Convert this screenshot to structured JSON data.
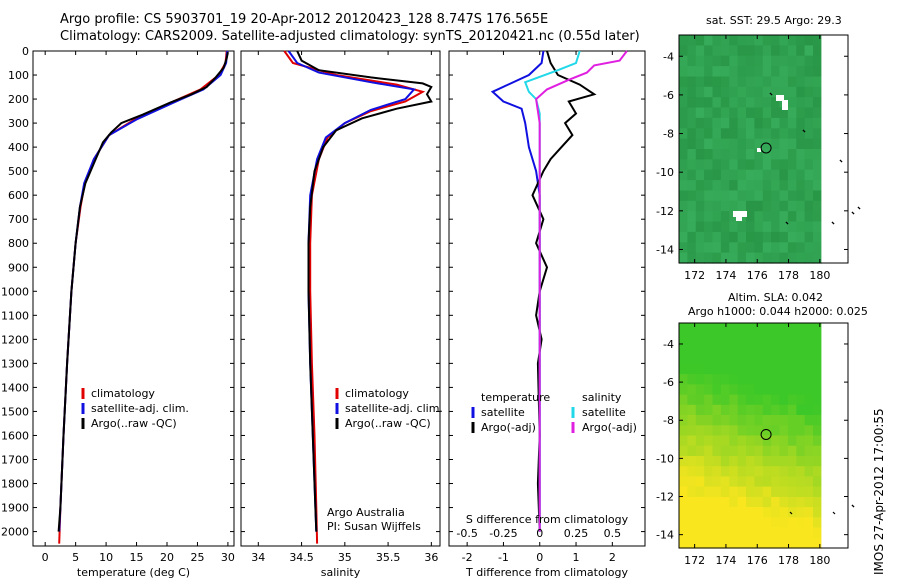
{
  "header": {
    "line1": "Argo profile: CS 5903701_19 20-Apr-2012 20120423_128 8.747S 176.565E",
    "line2": "Climatology: CARS2009. Satellite-adjusted climatology: synTS_20120421.nc (0.55d later)"
  },
  "colors": {
    "climatology": "#e00000",
    "satellite": "#1010e0",
    "argo": "#000000",
    "sat_s": "#20d8e8",
    "argo_s": "#e020e0"
  },
  "depth_ticks": [
    0,
    100,
    200,
    300,
    400,
    500,
    600,
    700,
    800,
    900,
    1000,
    1100,
    1200,
    1300,
    1400,
    1500,
    1600,
    1700,
    1800,
    1900,
    2000
  ],
  "chart_data": [
    {
      "type": "line",
      "name": "temperature",
      "xlabel": "temperature (deg C)",
      "ylabel": "",
      "xlim": [
        -2,
        31
      ],
      "ylim": [
        2060,
        0
      ],
      "xticks": [
        {
          "v": 0,
          "t": "0"
        },
        {
          "v": 5,
          "t": "5"
        },
        {
          "v": 10,
          "t": "10"
        },
        {
          "v": 15,
          "t": "15"
        },
        {
          "v": 20,
          "t": "20"
        },
        {
          "v": 25,
          "t": "25"
        },
        {
          "v": 30,
          "t": "30"
        }
      ],
      "legend": [
        "climatology",
        "satellite-adj. clim.",
        "Argo(..raw -QC)"
      ],
      "series": [
        {
          "name": "climatology",
          "color": "climatology",
          "points": [
            [
              29.8,
              0
            ],
            [
              29.6,
              50
            ],
            [
              28.5,
              100
            ],
            [
              25.5,
              160
            ],
            [
              21,
              210
            ],
            [
              15,
              280
            ],
            [
              10.5,
              350
            ],
            [
              8,
              450
            ],
            [
              6.5,
              550
            ],
            [
              5.8,
              650
            ],
            [
              5,
              800
            ],
            [
              4.3,
              1000
            ],
            [
              3.6,
              1300
            ],
            [
              3,
              1600
            ],
            [
              2.5,
              1900
            ],
            [
              2.3,
              2050
            ]
          ]
        },
        {
          "name": "satellite-adj. clim.",
          "color": "satellite",
          "points": [
            [
              29.9,
              0
            ],
            [
              29.7,
              50
            ],
            [
              28.8,
              100
            ],
            [
              26,
              160
            ],
            [
              21.5,
              210
            ],
            [
              15,
              285
            ],
            [
              10.5,
              350
            ],
            [
              8,
              450
            ],
            [
              6.4,
              550
            ],
            [
              5.7,
              650
            ],
            [
              5,
              800
            ],
            [
              4.3,
              1000
            ],
            [
              3.6,
              1300
            ],
            [
              3,
              1600
            ],
            [
              2.5,
              1900
            ],
            [
              2.3,
              2000
            ]
          ]
        },
        {
          "name": "Argo(..raw -QC)",
          "color": "argo",
          "points": [
            [
              30,
              5
            ],
            [
              29.8,
              30
            ],
            [
              29.3,
              70
            ],
            [
              28,
              110
            ],
            [
              26.5,
              150
            ],
            [
              24,
              180
            ],
            [
              20.5,
              215
            ],
            [
              16,
              265
            ],
            [
              12.5,
              300
            ],
            [
              10.8,
              340
            ],
            [
              9.5,
              380
            ],
            [
              8.3,
              450
            ],
            [
              6.6,
              550
            ],
            [
              5.7,
              650
            ],
            [
              5,
              800
            ],
            [
              4.3,
              1000
            ],
            [
              3.6,
              1300
            ],
            [
              3,
              1600
            ],
            [
              2.5,
              1900
            ],
            [
              2.2,
              2000
            ]
          ]
        }
      ]
    },
    {
      "type": "line",
      "name": "salinity",
      "xlabel": "salinity",
      "xlim": [
        33.8,
        36.1
      ],
      "ylim": [
        2060,
        0
      ],
      "xticks": [
        {
          "v": 34,
          "t": "34"
        },
        {
          "v": 34.5,
          "t": "34.5"
        },
        {
          "v": 35,
          "t": "35"
        },
        {
          "v": 35.5,
          "t": "35.5"
        },
        {
          "v": 36,
          "t": "36"
        }
      ],
      "legend": [
        "climatology",
        "satellite-adj. clim.",
        "Argo(..raw -QC)"
      ],
      "annotation": [
        "Argo Australia",
        "PI: Susan Wijffels"
      ],
      "series": [
        {
          "name": "climatology",
          "color": "climatology",
          "points": [
            [
              34.3,
              0
            ],
            [
              34.4,
              50
            ],
            [
              34.9,
              100
            ],
            [
              35.6,
              140
            ],
            [
              35.9,
              170
            ],
            [
              35.7,
              210
            ],
            [
              35.3,
              250
            ],
            [
              35,
              300
            ],
            [
              34.8,
              360
            ],
            [
              34.7,
              450
            ],
            [
              34.62,
              600
            ],
            [
              34.6,
              800
            ],
            [
              34.6,
              1000
            ],
            [
              34.62,
              1300
            ],
            [
              34.65,
              1600
            ],
            [
              34.67,
              1900
            ],
            [
              34.68,
              2050
            ]
          ]
        },
        {
          "name": "satellite-adj. clim.",
          "color": "satellite",
          "points": [
            [
              34.35,
              0
            ],
            [
              34.45,
              50
            ],
            [
              34.7,
              90
            ],
            [
              35.3,
              130
            ],
            [
              35.8,
              160
            ],
            [
              35.7,
              200
            ],
            [
              35.3,
              245
            ],
            [
              35,
              300
            ],
            [
              34.78,
              360
            ],
            [
              34.68,
              450
            ],
            [
              34.6,
              600
            ],
            [
              34.58,
              800
            ],
            [
              34.58,
              1000
            ],
            [
              34.6,
              1300
            ],
            [
              34.63,
              1600
            ],
            [
              34.66,
              1900
            ],
            [
              34.67,
              2000
            ]
          ]
        },
        {
          "name": "Argo(..raw -QC)",
          "color": "argo",
          "points": [
            [
              34.45,
              0
            ],
            [
              34.5,
              40
            ],
            [
              34.7,
              80
            ],
            [
              35.3,
              110
            ],
            [
              35.9,
              135
            ],
            [
              36,
              150
            ],
            [
              35.95,
              180
            ],
            [
              36,
              210
            ],
            [
              35.6,
              240
            ],
            [
              35.2,
              280
            ],
            [
              34.9,
              330
            ],
            [
              34.75,
              400
            ],
            [
              34.65,
              500
            ],
            [
              34.6,
              650
            ],
            [
              34.58,
              800
            ],
            [
              34.58,
              1000
            ],
            [
              34.6,
              1300
            ],
            [
              34.63,
              1600
            ],
            [
              34.66,
              1900
            ],
            [
              34.67,
              2000
            ]
          ]
        }
      ]
    },
    {
      "type": "line",
      "name": "difference",
      "xlabel": "T difference from climatology",
      "xlabel_top": "S difference from climatology",
      "xlim": [
        -2.5,
        2.9
      ],
      "ylim": [
        2060,
        0
      ],
      "xticks": [
        {
          "v": -2,
          "t": "-2"
        },
        {
          "v": -1,
          "t": "-1"
        },
        {
          "v": 0,
          "t": "0"
        },
        {
          "v": 1,
          "t": "1"
        },
        {
          "v": 2,
          "t": "2"
        }
      ],
      "xticks_top": [
        {
          "v": -2,
          "t": "-0.5"
        },
        {
          "v": -1,
          "t": "-0.25"
        },
        {
          "v": 0,
          "t": "0"
        },
        {
          "v": 1,
          "t": "0.25"
        },
        {
          "v": 2,
          "t": "0.5"
        }
      ],
      "legend_left_title": "temperature",
      "legend_right_title": "salinity",
      "legend_left": [
        "satellite",
        "Argo(-adj)"
      ],
      "legend_right": [
        "satellite",
        "Argo(-adj)"
      ],
      "series": [
        {
          "name": "T satellite",
          "color": "satellite",
          "points": [
            [
              0.1,
              0
            ],
            [
              0.05,
              50
            ],
            [
              -0.3,
              100
            ],
            [
              -1.3,
              170
            ],
            [
              -1,
              210
            ],
            [
              -0.5,
              240
            ],
            [
              -0.4,
              300
            ],
            [
              -0.3,
              400
            ],
            [
              -0.1,
              500
            ],
            [
              0,
              600
            ],
            [
              0,
              1000
            ],
            [
              0,
              2000
            ]
          ]
        },
        {
          "name": "T Argo(-adj)",
          "color": "argo",
          "points": [
            [
              0.2,
              0
            ],
            [
              0.3,
              50
            ],
            [
              0.5,
              100
            ],
            [
              1.1,
              140
            ],
            [
              1.5,
              180
            ],
            [
              0.8,
              210
            ],
            [
              1,
              260
            ],
            [
              0.7,
              300
            ],
            [
              0.9,
              350
            ],
            [
              0.6,
              400
            ],
            [
              0.3,
              450
            ],
            [
              0.1,
              500
            ],
            [
              -0.2,
              600
            ],
            [
              0.1,
              700
            ],
            [
              -0.1,
              800
            ],
            [
              0.2,
              900
            ],
            [
              0,
              1000
            ],
            [
              -0.1,
              1100
            ],
            [
              0.05,
              1200
            ],
            [
              -0.05,
              1300
            ],
            [
              0,
              1600
            ],
            [
              -0.05,
              1800
            ],
            [
              0,
              2000
            ]
          ]
        },
        {
          "name": "S satellite",
          "color": "sat_s",
          "points": [
            [
              1.1,
              0
            ],
            [
              1,
              50
            ],
            [
              0.5,
              80
            ],
            [
              -0.4,
              130
            ],
            [
              -0.3,
              170
            ],
            [
              -0.1,
              200
            ],
            [
              0,
              260
            ],
            [
              0,
              1000
            ],
            [
              0,
              2000
            ]
          ]
        },
        {
          "name": "S Argo(-adj)",
          "color": "argo_s",
          "points": [
            [
              2.4,
              0
            ],
            [
              2.2,
              40
            ],
            [
              1.5,
              60
            ],
            [
              1.3,
              90
            ],
            [
              0.8,
              120
            ],
            [
              0.2,
              160
            ],
            [
              -0.1,
              200
            ],
            [
              0,
              300
            ],
            [
              0,
              1000
            ],
            [
              0,
              2000
            ]
          ]
        }
      ]
    },
    {
      "type": "heatmap",
      "name": "sst-map",
      "title": "sat. SST: 29.5  Argo: 29.3",
      "xlim": [
        171,
        181.8
      ],
      "ylim": [
        -14.7,
        -2.9
      ],
      "xticks": [
        {
          "v": 172,
          "t": "172"
        },
        {
          "v": 174,
          "t": "174"
        },
        {
          "v": 176,
          "t": "176"
        },
        {
          "v": 178,
          "t": "178"
        },
        {
          "v": 180,
          "t": "180"
        }
      ],
      "yticks": [
        {
          "v": -4,
          "t": "-4"
        },
        {
          "v": -6,
          "t": "-6"
        },
        {
          "v": -8,
          "t": "-8"
        },
        {
          "v": -10,
          "t": "-10"
        },
        {
          "v": -12,
          "t": "-12"
        },
        {
          "v": -14,
          "t": "-14"
        }
      ],
      "marker": [
        176.565,
        -8.747
      ]
    },
    {
      "type": "heatmap",
      "name": "sla-map",
      "title_line1": "Altim. SLA: 0.042",
      "title_line2": "Argo h1000: 0.044 h2000: 0.025",
      "xlim": [
        171,
        181.8
      ],
      "ylim": [
        -14.7,
        -2.9
      ],
      "xticks": [
        {
          "v": 172,
          "t": "172"
        },
        {
          "v": 174,
          "t": "174"
        },
        {
          "v": 176,
          "t": "176"
        },
        {
          "v": 178,
          "t": "178"
        },
        {
          "v": 180,
          "t": "180"
        }
      ],
      "yticks": [
        {
          "v": -4,
          "t": "-4"
        },
        {
          "v": -6,
          "t": "-6"
        },
        {
          "v": -8,
          "t": "-8"
        },
        {
          "v": -10,
          "t": "-10"
        },
        {
          "v": -12,
          "t": "-12"
        },
        {
          "v": -14,
          "t": "-14"
        }
      ],
      "marker": [
        176.565,
        -8.747
      ]
    }
  ],
  "stamp": "IMOS 27-Apr-2012 17:00:55"
}
